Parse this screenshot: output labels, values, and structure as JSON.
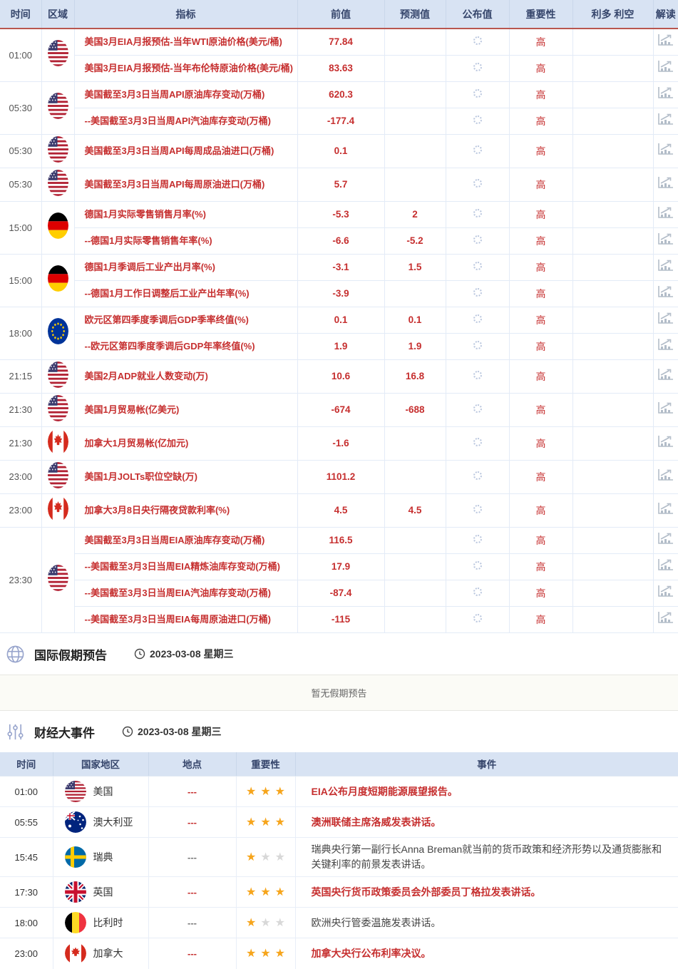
{
  "colors": {
    "accent_red": "#c62f2f",
    "header_bg": "#d8e3f3",
    "header_text": "#35456b",
    "header_underline_red": "#b9564f",
    "star_gold": "#f6a51c",
    "star_empty": "#d8d8d8",
    "section_icon_blue": "#97a4cc",
    "row_border": "#e3ebf7"
  },
  "icons": {
    "published_pending": "loading-spinner-icon",
    "interpretation": "chart-icon",
    "holiday_section": "globe-icon",
    "events_section": "sliders-icon",
    "date_prefix": "clock-icon",
    "region_flags": "country-flag-icon"
  },
  "economic_table": {
    "headers": [
      "时间",
      "区域",
      "指标",
      "前值",
      "预测值",
      "公布值",
      "重要性",
      "利多 利空",
      "解读"
    ],
    "groups": [
      {
        "time": "01:00",
        "country": "us",
        "rows": [
          {
            "indicator": "美国3月EIA月报预估-当年WTI原油价格(美元/桶)",
            "previous": "77.84",
            "forecast": "",
            "importance": "高"
          },
          {
            "indicator": "美国3月EIA月报预估-当年布伦特原油价格(美元/桶)",
            "previous": "83.63",
            "forecast": "",
            "importance": "高"
          }
        ]
      },
      {
        "time": "05:30",
        "country": "us",
        "rows": [
          {
            "indicator": "美国截至3月3日当周API原油库存变动(万桶)",
            "previous": "620.3",
            "forecast": "",
            "importance": "高"
          },
          {
            "indicator": "--美国截至3月3日当周API汽油库存变动(万桶)",
            "previous": "-177.4",
            "forecast": "",
            "importance": "高"
          }
        ]
      },
      {
        "time": "05:30",
        "country": "us",
        "rows": [
          {
            "indicator": "美国截至3月3日当周API每周成品油进口(万桶)",
            "previous": "0.1",
            "forecast": "",
            "importance": "高"
          }
        ]
      },
      {
        "time": "05:30",
        "country": "us",
        "rows": [
          {
            "indicator": "美国截至3月3日当周API每周原油进口(万桶)",
            "previous": "5.7",
            "forecast": "",
            "importance": "高"
          }
        ]
      },
      {
        "time": "15:00",
        "country": "de",
        "rows": [
          {
            "indicator": "德国1月实际零售销售月率(%)",
            "previous": "-5.3",
            "forecast": "2",
            "importance": "高"
          },
          {
            "indicator": "--德国1月实际零售销售年率(%)",
            "previous": "-6.6",
            "forecast": "-5.2",
            "importance": "高"
          }
        ]
      },
      {
        "time": "15:00",
        "country": "de",
        "rows": [
          {
            "indicator": "德国1月季调后工业产出月率(%)",
            "previous": "-3.1",
            "forecast": "1.5",
            "importance": "高"
          },
          {
            "indicator": "--德国1月工作日调整后工业产出年率(%)",
            "previous": "-3.9",
            "forecast": "",
            "importance": "高"
          }
        ]
      },
      {
        "time": "18:00",
        "country": "eu",
        "rows": [
          {
            "indicator": "欧元区第四季度季调后GDP季率终值(%)",
            "previous": "0.1",
            "forecast": "0.1",
            "importance": "高"
          },
          {
            "indicator": "--欧元区第四季度季调后GDP年率终值(%)",
            "previous": "1.9",
            "forecast": "1.9",
            "importance": "高"
          }
        ]
      },
      {
        "time": "21:15",
        "country": "us",
        "rows": [
          {
            "indicator": "美国2月ADP就业人数变动(万)",
            "previous": "10.6",
            "forecast": "16.8",
            "importance": "高"
          }
        ]
      },
      {
        "time": "21:30",
        "country": "us",
        "rows": [
          {
            "indicator": "美国1月贸易帐(亿美元)",
            "previous": "-674",
            "forecast": "-688",
            "importance": "高"
          }
        ]
      },
      {
        "time": "21:30",
        "country": "ca",
        "rows": [
          {
            "indicator": "加拿大1月贸易帐(亿加元)",
            "previous": "-1.6",
            "forecast": "",
            "importance": "高"
          }
        ]
      },
      {
        "time": "23:00",
        "country": "us",
        "rows": [
          {
            "indicator": "美国1月JOLTs职位空缺(万)",
            "previous": "1101.2",
            "forecast": "",
            "importance": "高"
          }
        ]
      },
      {
        "time": "23:00",
        "country": "ca",
        "rows": [
          {
            "indicator": "加拿大3月8日央行隔夜贷款利率(%)",
            "previous": "4.5",
            "forecast": "4.5",
            "importance": "高"
          }
        ]
      },
      {
        "time": "23:30",
        "country": "us",
        "rows": [
          {
            "indicator": "美国截至3月3日当周EIA原油库存变动(万桶)",
            "previous": "116.5",
            "forecast": "",
            "importance": "高"
          },
          {
            "indicator": "--美国截至3月3日当周EIA精炼油库存变动(万桶)",
            "previous": "17.9",
            "forecast": "",
            "importance": "高"
          },
          {
            "indicator": "--美国截至3月3日当周EIA汽油库存变动(万桶)",
            "previous": "-87.4",
            "forecast": "",
            "importance": "高"
          },
          {
            "indicator": "--美国截至3月3日当周EIA每周原油进口(万桶)",
            "previous": "-115",
            "forecast": "",
            "importance": "高"
          }
        ]
      }
    ]
  },
  "holiday_section": {
    "title": "国际假期预告",
    "date": "2023-03-08 星期三",
    "empty_text": "暂无假期预告"
  },
  "events_section": {
    "title": "财经大事件",
    "date": "2023-03-08 星期三",
    "headers": [
      "时间",
      "国家地区",
      "地点",
      "重要性",
      "事件"
    ],
    "rows": [
      {
        "time": "01:00",
        "country": "us",
        "country_name": "美国",
        "location": "---",
        "stars": 3,
        "event": "EIA公布月度短期能源展望报告。",
        "highlighted": true
      },
      {
        "time": "05:55",
        "country": "au",
        "country_name": "澳大利亚",
        "location": "---",
        "stars": 3,
        "event": "澳洲联储主席洛威发表讲话。",
        "highlighted": true
      },
      {
        "time": "15:45",
        "country": "se",
        "country_name": "瑞典",
        "location": "---",
        "stars": 1,
        "event": "瑞典央行第一副行长Anna Breman就当前的货币政策和经济形势以及通货膨胀和关键利率的前景发表讲话。",
        "highlighted": false
      },
      {
        "time": "17:30",
        "country": "gb",
        "country_name": "英国",
        "location": "---",
        "stars": 3,
        "event": "英国央行货币政策委员会外部委员丁格拉发表讲话。",
        "highlighted": true
      },
      {
        "time": "18:00",
        "country": "be",
        "country_name": "比利时",
        "location": "---",
        "stars": 1,
        "event": "欧洲央行管委温施发表讲话。",
        "highlighted": false
      },
      {
        "time": "23:00",
        "country": "ca",
        "country_name": "加拿大",
        "location": "---",
        "stars": 3,
        "event": "加拿大央行公布利率决议。",
        "highlighted": true
      }
    ]
  }
}
